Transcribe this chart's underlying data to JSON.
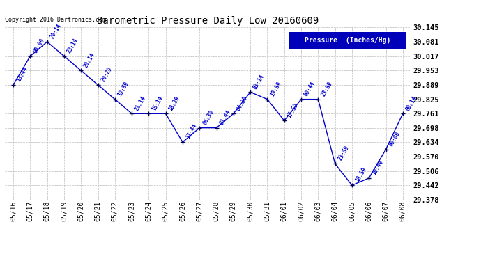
{
  "title": "Barometric Pressure Daily Low 20160609",
  "copyright": "Copyright 2016 Dartronics.com",
  "legend_label": "Pressure  (Inches/Hg)",
  "dates": [
    "05/16",
    "05/17",
    "05/18",
    "05/19",
    "05/20",
    "05/21",
    "05/22",
    "05/23",
    "05/24",
    "05/25",
    "05/26",
    "05/27",
    "05/28",
    "05/29",
    "05/30",
    "05/31",
    "06/01",
    "06/02",
    "06/03",
    "06/04",
    "06/05",
    "06/06",
    "06/07",
    "06/08"
  ],
  "values": [
    29.889,
    30.017,
    30.081,
    30.017,
    29.953,
    29.889,
    29.825,
    29.761,
    29.761,
    29.761,
    29.634,
    29.698,
    29.698,
    29.761,
    29.857,
    29.825,
    29.73,
    29.825,
    29.825,
    29.538,
    29.442,
    29.474,
    29.602,
    29.761
  ],
  "annotations": [
    "13:44",
    "00:00",
    "20:14",
    "23:14",
    "20:14",
    "20:29",
    "19:59",
    "21:14",
    "15:14",
    "18:29",
    "17:44",
    "06:30",
    "01:44",
    "04:30",
    "03:14",
    "19:59",
    "17:59",
    "00:44",
    "23:59",
    "23:59",
    "18:59",
    "10:44",
    "00:00",
    "00:14"
  ],
  "line_color": "#0000cc",
  "marker_color": "#000055",
  "annotation_color": "#0000cc",
  "bg_color": "#ffffff",
  "grid_color": "#aaaaaa",
  "title_color": "#000000",
  "copyright_color": "#000000",
  "legend_bg": "#0000bb",
  "legend_text_color": "#ffffff",
  "ylim": [
    29.378,
    30.145
  ],
  "yticks": [
    29.378,
    29.442,
    29.506,
    29.57,
    29.634,
    29.698,
    29.761,
    29.825,
    29.889,
    29.953,
    30.017,
    30.081,
    30.145
  ],
  "title_fontsize": 10,
  "copyright_fontsize": 6,
  "annotation_fontsize": 5.5,
  "tick_fontsize": 7,
  "ytick_fontsize": 7.5
}
